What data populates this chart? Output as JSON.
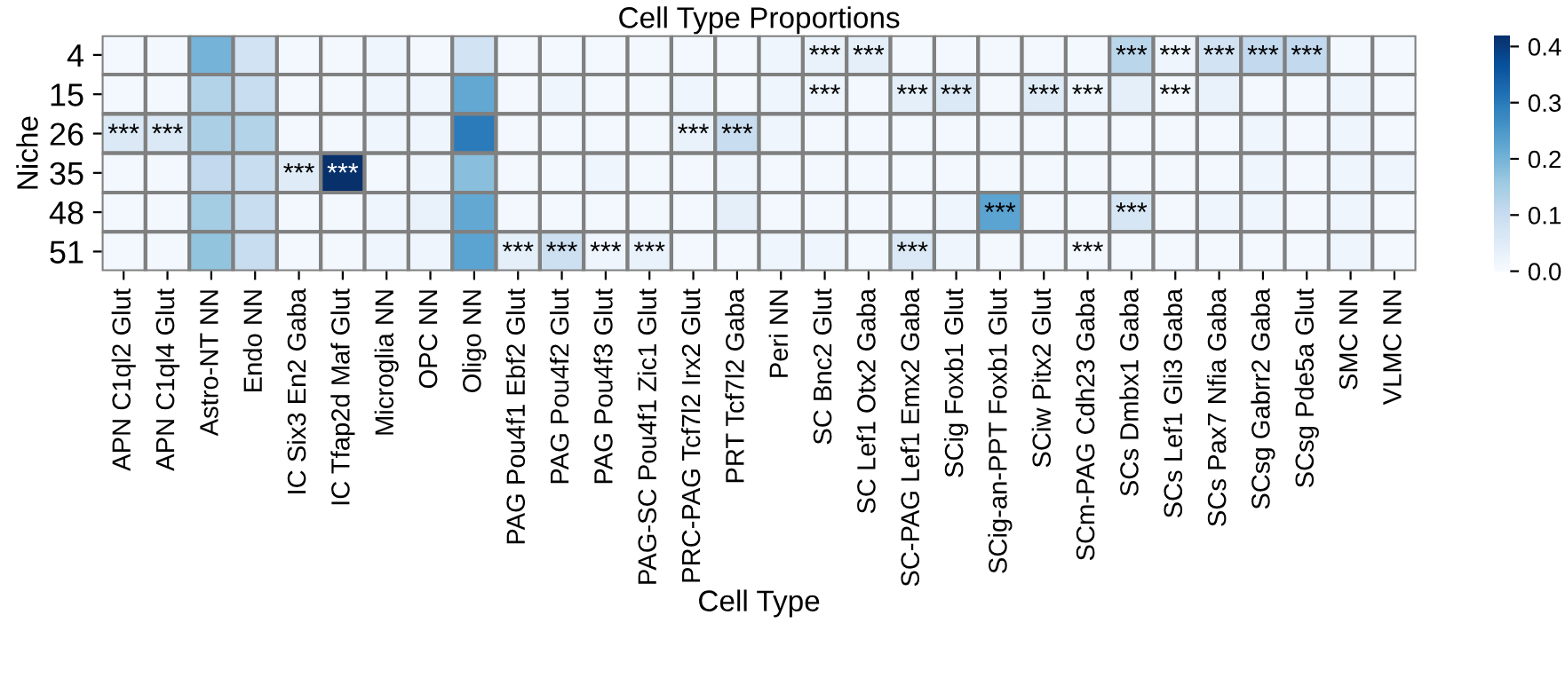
{
  "chart_data": {
    "type": "heatmap",
    "title": "Cell Type Proportions",
    "xlabel": "Cell Type",
    "ylabel": "Niche",
    "categories": [
      "APN C1ql2 Glut",
      "APN C1ql4 Glut",
      "Astro-NT NN",
      "Endo NN",
      "IC Six3 En2 Gaba",
      "IC Tfap2d Maf Glut",
      "Microglia NN",
      "OPC NN",
      "Oligo NN",
      "PAG Pou4f1 Ebf2 Glut",
      "PAG Pou4f2 Glut",
      "PAG Pou4f3 Glut",
      "PAG-SC Pou4f1 Zic1 Glut",
      "PRC-PAG Tcf7l2 Irx2 Glut",
      "PRT Tcf7l2 Gaba",
      "Peri NN",
      "SC Bnc2 Glut",
      "SC Lef1 Otx2 Gaba",
      "SC-PAG Lef1 Emx2 Gaba",
      "SCig Foxb1 Glut",
      "SCig-an-PPT Foxb1 Glut",
      "SCiw Pitx2 Glut",
      "SCm-PAG Cdh23 Gaba",
      "SCs Dmbx1 Gaba",
      "SCs Lef1 Gli3 Gaba",
      "SCs Pax7 Nfia Gaba",
      "SCsg Gabrr2 Gaba",
      "SCsg Pde5a Glut",
      "SMC NN",
      "VLMC NN"
    ],
    "y_categories": [
      "4",
      "15",
      "26",
      "35",
      "48",
      "51"
    ],
    "cells": [
      [
        0.01,
        0.01,
        0.2,
        0.08,
        0.01,
        0.01,
        0.02,
        0.01,
        0.08,
        0.01,
        0.01,
        0.01,
        0.01,
        0.01,
        0.01,
        0.02,
        0.03,
        0.04,
        0.01,
        0.01,
        0.01,
        0.01,
        0.01,
        0.12,
        0.02,
        0.08,
        0.11,
        0.11,
        0.01,
        0.01
      ],
      [
        0.01,
        0.01,
        0.13,
        0.1,
        0.01,
        0.01,
        0.02,
        0.02,
        0.22,
        0.01,
        0.02,
        0.01,
        0.01,
        0.02,
        0.01,
        0.02,
        0.02,
        0.01,
        0.04,
        0.06,
        0.01,
        0.05,
        0.02,
        0.04,
        0.01,
        0.03,
        0.01,
        0.01,
        0.02,
        0.01
      ],
      [
        0.06,
        0.06,
        0.14,
        0.13,
        0.01,
        0.01,
        0.02,
        0.02,
        0.3,
        0.01,
        0.01,
        0.01,
        0.01,
        0.03,
        0.1,
        0.02,
        0.01,
        0.01,
        0.01,
        0.01,
        0.01,
        0.01,
        0.01,
        0.01,
        0.01,
        0.01,
        0.02,
        0.01,
        0.02,
        0.01
      ],
      [
        0.01,
        0.01,
        0.11,
        0.1,
        0.05,
        0.42,
        0.01,
        0.02,
        0.18,
        0.01,
        0.01,
        0.02,
        0.01,
        0.01,
        0.02,
        0.01,
        0.01,
        0.01,
        0.01,
        0.01,
        0.01,
        0.01,
        0.01,
        0.01,
        0.01,
        0.01,
        0.02,
        0.01,
        0.02,
        0.02
      ],
      [
        0.01,
        0.01,
        0.15,
        0.1,
        0.01,
        0.01,
        0.02,
        0.03,
        0.22,
        0.01,
        0.01,
        0.01,
        0.01,
        0.01,
        0.04,
        0.01,
        0.01,
        0.01,
        0.01,
        0.02,
        0.23,
        0.01,
        0.01,
        0.07,
        0.01,
        0.02,
        0.02,
        0.01,
        0.02,
        0.01
      ],
      [
        0.01,
        0.01,
        0.17,
        0.1,
        0.01,
        0.01,
        0.02,
        0.02,
        0.23,
        0.04,
        0.09,
        0.02,
        0.03,
        0.01,
        0.01,
        0.02,
        0.02,
        0.01,
        0.06,
        0.02,
        0.01,
        0.01,
        0.01,
        0.01,
        0.01,
        0.01,
        0.01,
        0.01,
        0.02,
        0.01
      ]
    ],
    "cell_labels": [
      [
        null,
        null,
        null,
        null,
        null,
        null,
        null,
        null,
        null,
        null,
        null,
        null,
        null,
        null,
        null,
        null,
        "***",
        "***",
        null,
        null,
        null,
        null,
        null,
        "***",
        "***",
        "***",
        "***",
        "***",
        null,
        null
      ],
      [
        null,
        null,
        null,
        null,
        null,
        null,
        null,
        null,
        null,
        null,
        null,
        null,
        null,
        null,
        null,
        null,
        "***",
        null,
        "***",
        "***",
        null,
        "***",
        "***",
        null,
        "***",
        null,
        null,
        null,
        null,
        null
      ],
      [
        "***",
        "***",
        null,
        null,
        null,
        null,
        null,
        null,
        null,
        null,
        null,
        null,
        null,
        "***",
        "***",
        null,
        null,
        null,
        null,
        null,
        null,
        null,
        null,
        null,
        null,
        null,
        null,
        null,
        null,
        null
      ],
      [
        null,
        null,
        null,
        null,
        "***",
        "***",
        null,
        null,
        null,
        null,
        null,
        null,
        null,
        null,
        null,
        null,
        null,
        null,
        null,
        null,
        null,
        null,
        null,
        null,
        null,
        null,
        null,
        null,
        null,
        null
      ],
      [
        null,
        null,
        null,
        null,
        null,
        null,
        null,
        null,
        null,
        null,
        null,
        null,
        null,
        null,
        null,
        null,
        null,
        null,
        null,
        null,
        "***",
        null,
        null,
        "***",
        null,
        null,
        null,
        null,
        null,
        null
      ],
      [
        null,
        null,
        null,
        null,
        null,
        null,
        null,
        null,
        null,
        "***",
        "***",
        "***",
        "***",
        null,
        null,
        null,
        null,
        null,
        "***",
        null,
        null,
        null,
        "***",
        null,
        null,
        null,
        null,
        null,
        null,
        null
      ]
    ],
    "clim": [
      0,
      0.42
    ],
    "cticks": [
      {
        "value": 0,
        "label": "0.0"
      },
      {
        "value": 0.1,
        "label": "0.1"
      },
      {
        "value": 0.2,
        "label": "0.2"
      },
      {
        "value": 0.3,
        "label": "0.3"
      },
      {
        "value": 0.4,
        "label": "0.4"
      }
    ]
  }
}
